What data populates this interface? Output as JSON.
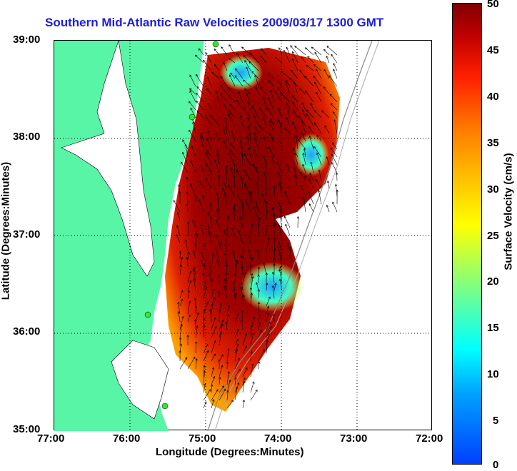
{
  "title": "Southern Mid-Atlantic Raw Velocities 2009/03/17 1300 GMT",
  "axes": {
    "xlabel": "Longitude (Degrees:Minutes)",
    "ylabel": "Latitude (Degrees:Minutes)",
    "x_ticks": [
      "77:00",
      "76:00",
      "75:00",
      "74:00",
      "73:00",
      "72:00"
    ],
    "y_ticks": [
      "39:00",
      "38:00",
      "37:00",
      "36:00",
      "35:00"
    ]
  },
  "colorbar": {
    "label": "Surface Velocity (cm/s)",
    "ticks": [
      "50",
      "45",
      "40",
      "35",
      "30",
      "25",
      "20",
      "15",
      "10",
      "5",
      "0"
    ],
    "range": [
      0,
      50
    ]
  },
  "colors": {
    "land": "#59f5a6",
    "title_blue": "#1c1cdd",
    "station": "#33e633",
    "high": "#800000",
    "mid": "#ffff00",
    "low": "#00a0ff"
  }
}
